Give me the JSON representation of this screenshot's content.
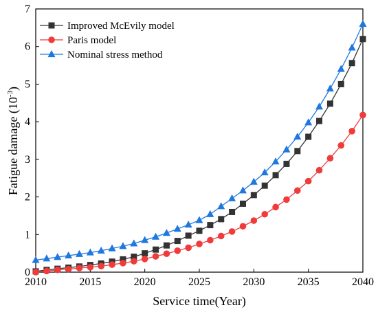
{
  "chart_data": {
    "type": "line",
    "title": "",
    "xlabel": "Service time(Year)",
    "ylabel_main": "Fatigue damage (10",
    "ylabel_sup": "-3",
    "ylabel_close": ")",
    "xlim": [
      2010,
      2040
    ],
    "ylim": [
      0,
      7
    ],
    "xticks": [
      2010,
      2015,
      2020,
      2025,
      2030,
      2035,
      2040
    ],
    "yticks": [
      0,
      1,
      2,
      3,
      4,
      5,
      6,
      7
    ],
    "grid": false,
    "legend_position": "top-left",
    "x": [
      2010,
      2011,
      2012,
      2013,
      2014,
      2015,
      2016,
      2017,
      2018,
      2019,
      2020,
      2021,
      2022,
      2023,
      2024,
      2025,
      2026,
      2027,
      2028,
      2029,
      2030,
      2031,
      2032,
      2033,
      2034,
      2035,
      2036,
      2037,
      2038,
      2039,
      2040
    ],
    "series": [
      {
        "name": "Improved McEvily model",
        "color": "#333333",
        "marker": "square",
        "values": [
          0.02,
          0.06,
          0.09,
          0.12,
          0.15,
          0.19,
          0.23,
          0.28,
          0.34,
          0.41,
          0.5,
          0.6,
          0.71,
          0.83,
          0.97,
          1.1,
          1.25,
          1.41,
          1.6,
          1.82,
          2.05,
          2.3,
          2.58,
          2.88,
          3.22,
          3.6,
          4.02,
          4.48,
          5.0,
          5.56,
          6.2
        ]
      },
      {
        "name": "Paris model",
        "color": "#f03b3b",
        "marker": "circle",
        "values": [
          0.0,
          0.03,
          0.06,
          0.08,
          0.11,
          0.13,
          0.16,
          0.2,
          0.24,
          0.29,
          0.35,
          0.42,
          0.49,
          0.57,
          0.65,
          0.75,
          0.85,
          0.96,
          1.08,
          1.22,
          1.37,
          1.54,
          1.73,
          1.93,
          2.17,
          2.42,
          2.71,
          3.03,
          3.37,
          3.75,
          4.18
        ]
      },
      {
        "name": "Nominal stress method",
        "color": "#1f78e0",
        "marker": "triangle",
        "values": [
          0.32,
          0.36,
          0.4,
          0.44,
          0.48,
          0.52,
          0.57,
          0.63,
          0.69,
          0.76,
          0.85,
          0.94,
          1.04,
          1.15,
          1.26,
          1.38,
          1.54,
          1.75,
          1.96,
          2.17,
          2.4,
          2.65,
          2.94,
          3.26,
          3.6,
          3.98,
          4.4,
          4.88,
          5.4,
          5.97,
          6.6
        ]
      }
    ]
  }
}
